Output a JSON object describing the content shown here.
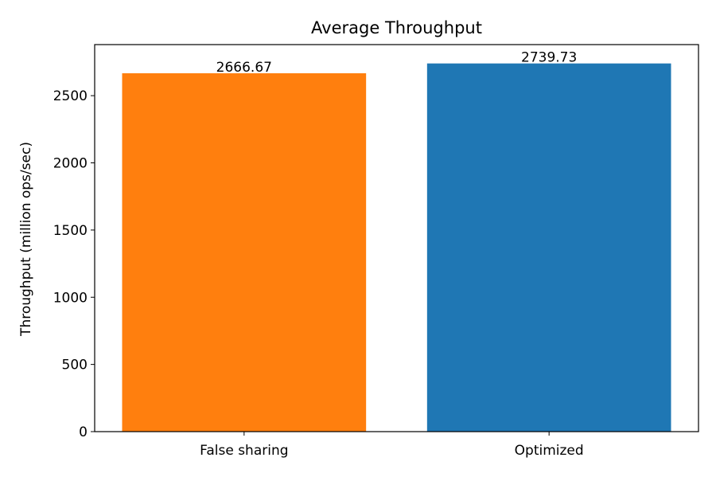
{
  "chart_data": {
    "type": "bar",
    "title": "Average Throughput",
    "xlabel": "",
    "ylabel": "Throughput (million ops/sec)",
    "categories": [
      "False sharing",
      "Optimized"
    ],
    "values": [
      2666.67,
      2739.73
    ],
    "value_labels": [
      "2666.67",
      "2739.73"
    ],
    "colors": [
      "#ff7f0e",
      "#1f77b4"
    ],
    "ylim": [
      0,
      2880
    ],
    "yticks": [
      0,
      500,
      1000,
      1500,
      2000,
      2500
    ],
    "grid": false,
    "legend": "none"
  }
}
